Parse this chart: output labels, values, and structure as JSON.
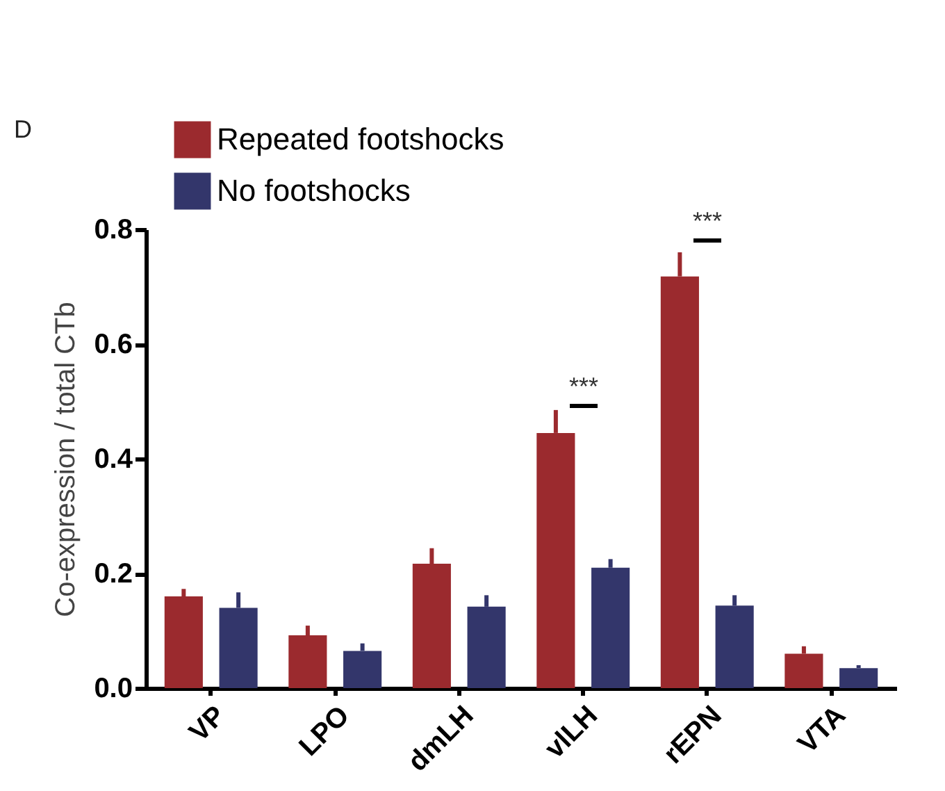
{
  "chart_data": {
    "type": "bar",
    "ylabel": "Co-expression / total CTb",
    "categories": [
      "VP",
      "LPO",
      "dmLH",
      "vlLH",
      "rEPN",
      "VTA"
    ],
    "series": [
      {
        "name": "Repeated footshocks",
        "color": "#9b2a2e",
        "values": [
          0.16,
          0.092,
          0.217,
          0.445,
          0.718,
          0.06
        ],
        "errors": [
          [
            0.16,
            0.173
          ],
          [
            0.092,
            0.109
          ],
          [
            0.217,
            0.244
          ],
          [
            0.445,
            0.485
          ],
          [
            0.718,
            0.76
          ],
          [
            0.06,
            0.073
          ]
        ]
      },
      {
        "name": "No footshocks",
        "color": "#33366b",
        "values": [
          0.14,
          0.065,
          0.142,
          0.21,
          0.144,
          0.035
        ],
        "errors": [
          [
            0.14,
            0.167
          ],
          [
            0.065,
            0.078
          ],
          [
            0.142,
            0.162
          ],
          [
            0.21,
            0.225
          ],
          [
            0.144,
            0.162
          ],
          [
            0.035,
            0.04
          ]
        ]
      }
    ],
    "ylim": [
      0,
      0.8
    ],
    "yticks": [
      {
        "value": 0,
        "label": "0.0"
      },
      0.2,
      0.4,
      0.6,
      0.8
    ],
    "grid": false,
    "legend": "top left",
    "annotations": [
      "D",
      "***",
      "***"
    ]
  }
}
